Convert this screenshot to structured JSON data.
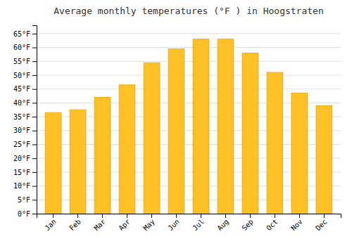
{
  "chart_data": {
    "type": "bar",
    "title": "Average monthly temperatures (°F ) in Hoogstraten",
    "categories": [
      "Jan",
      "Feb",
      "Mar",
      "Apr",
      "May",
      "Jun",
      "Jul",
      "Aug",
      "Sep",
      "Oct",
      "Nov",
      "Dec"
    ],
    "values": [
      36.5,
      37.5,
      42.0,
      46.5,
      54.5,
      59.5,
      63.0,
      63.0,
      58.0,
      51.0,
      43.5,
      39.0
    ],
    "color": "#FFC125",
    "ylim": [
      0,
      68
    ],
    "yticks": [
      {
        "value": 0,
        "label": "0°F"
      },
      {
        "value": 5,
        "label": "5°F"
      },
      {
        "value": 10,
        "label": "10°F"
      },
      {
        "value": 15,
        "label": "15°F"
      },
      {
        "value": 20,
        "label": "20°F"
      },
      {
        "value": 25,
        "label": "25°F"
      },
      {
        "value": 30,
        "label": "30°F"
      },
      {
        "value": 35,
        "label": "35°F"
      },
      {
        "value": 40,
        "label": "40°F"
      },
      {
        "value": 45,
        "label": "45°F"
      },
      {
        "value": 50,
        "label": "50°F"
      },
      {
        "value": 55,
        "label": "55°F"
      },
      {
        "value": 60,
        "label": "60°F"
      },
      {
        "value": 65,
        "label": "65°F"
      }
    ],
    "grid": true
  }
}
